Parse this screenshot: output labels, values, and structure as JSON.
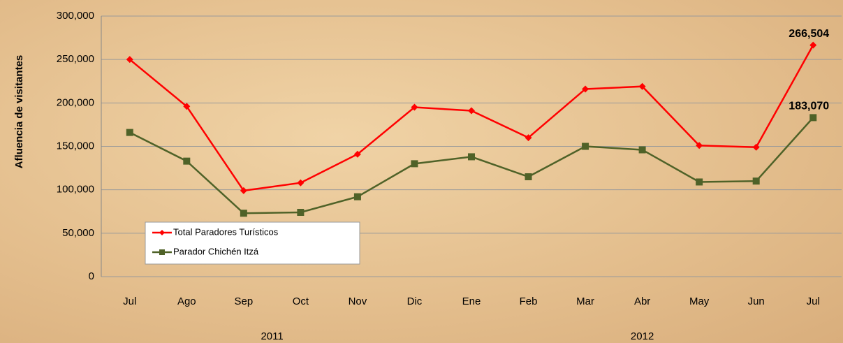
{
  "chart_data": {
    "type": "line",
    "y_label": "Afluencia de visitantes",
    "categories": [
      "Jul",
      "Ago",
      "Sep",
      "Oct",
      "Nov",
      "Dic",
      "Ene",
      "Feb",
      "Mar",
      "Abr",
      "May",
      "Jun",
      "Jul"
    ],
    "groups": [
      {
        "label": "2011",
        "start": 0,
        "end": 5
      },
      {
        "label": "2012",
        "start": 6,
        "end": 12
      }
    ],
    "series": [
      {
        "name": "Total Paradores Turísticos",
        "color": "#ff0000",
        "marker": "diamond",
        "values": [
          250000,
          196000,
          99000,
          108000,
          141000,
          195000,
          191000,
          160000,
          216000,
          219000,
          151000,
          149000,
          266504
        ],
        "value_labels": [
          null,
          null,
          null,
          null,
          null,
          null,
          null,
          null,
          null,
          null,
          null,
          null,
          "266,504"
        ]
      },
      {
        "name": "Parador Chichén Itzá",
        "color": "#4f6228",
        "marker": "square",
        "values": [
          166000,
          133000,
          73000,
          74000,
          92000,
          130000,
          138000,
          115000,
          150000,
          146000,
          109000,
          110000,
          183070
        ],
        "value_labels": [
          null,
          null,
          null,
          null,
          null,
          null,
          null,
          null,
          null,
          null,
          null,
          null,
          "183,070"
        ]
      }
    ],
    "ylim": [
      0,
      300000
    ],
    "yticks": [
      0,
      {
        "value": 50000,
        "label": "50,000"
      },
      {
        "value": 100000,
        "label": "100,000"
      },
      {
        "value": 150000,
        "label": "150,000"
      },
      {
        "value": 200000,
        "label": "200,000"
      },
      {
        "value": 250000,
        "label": "250,000"
      },
      {
        "value": 300000,
        "label": "300,000"
      }
    ],
    "grid": true,
    "legend": "lower-left"
  }
}
